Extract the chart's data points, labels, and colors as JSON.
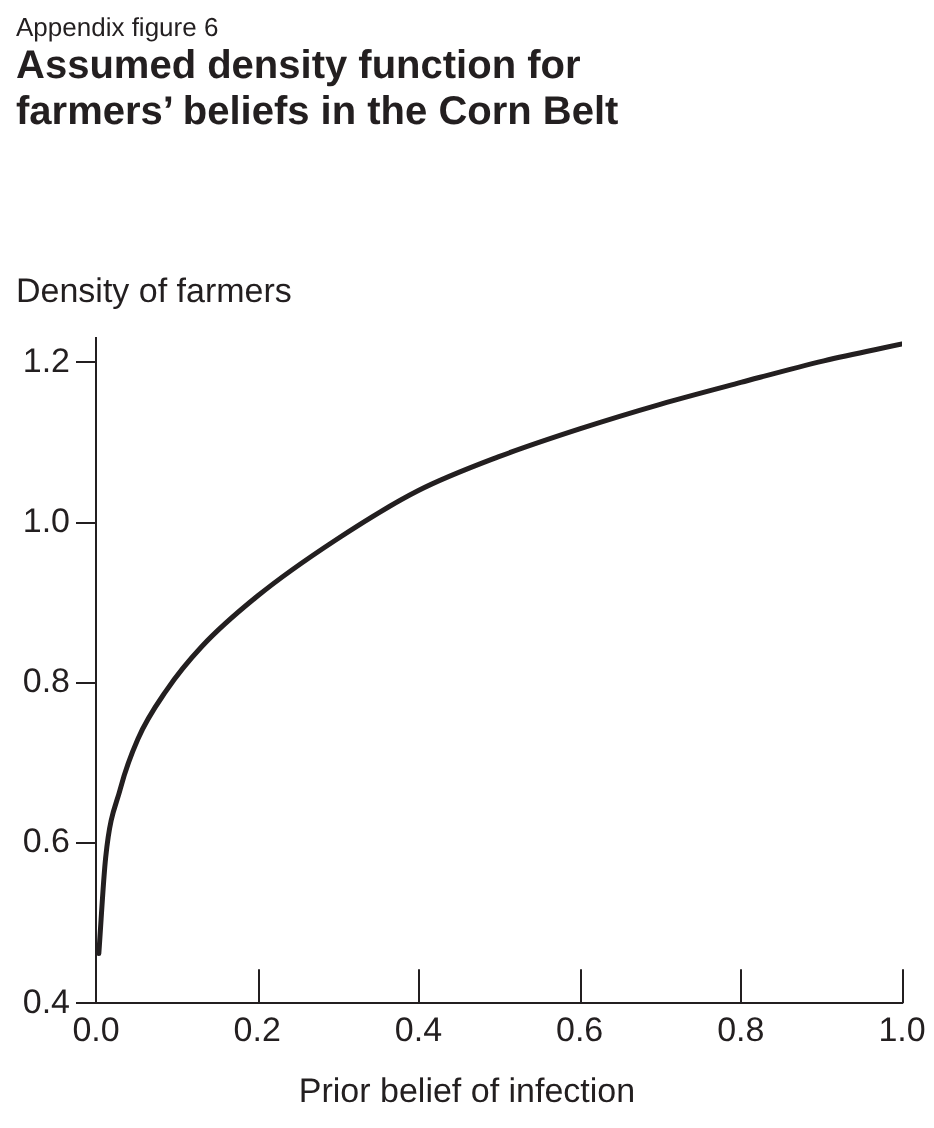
{
  "chart_data": {
    "type": "line",
    "title": "Assumed density function for farmers’ beliefs in the Corn Belt",
    "subtitle": "Appendix figure 6",
    "ylabel": "Density of farmers",
    "xlabel": "Prior belief of infection",
    "x": [
      0.0035,
      0.012,
      0.03,
      0.052,
      0.087,
      0.131,
      0.2,
      0.297,
      0.4,
      0.499,
      0.6,
      0.701,
      0.8,
      0.903,
      1.0
    ],
    "values": [
      0.462,
      0.582,
      0.667,
      0.73,
      0.79,
      0.845,
      0.908,
      0.978,
      1.04,
      1.082,
      1.117,
      1.148,
      1.175,
      1.202,
      1.223
    ],
    "color": "#231f20",
    "xlim": [
      0,
      1
    ],
    "ylim": [
      0.4,
      1.23
    ],
    "xticks": [
      {
        "value": 0,
        "label": "0.0"
      },
      0.2,
      0.4,
      0.6,
      0.8,
      {
        "value": 1,
        "label": "1.0"
      }
    ],
    "yticks": [
      0.4,
      0.6,
      0.8,
      {
        "value": 1,
        "label": "1.0"
      },
      1.2
    ],
    "grid": false,
    "legend": false,
    "marker": "none",
    "line_style": "solid"
  }
}
